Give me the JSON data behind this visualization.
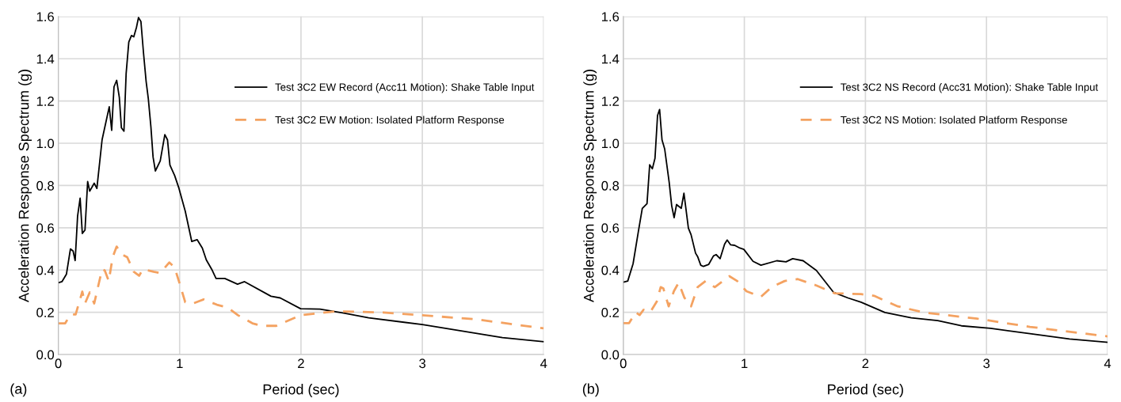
{
  "chart_data": [
    {
      "type": "line",
      "xlabel": "Period (sec)",
      "ylabel": "Acceleration Response Spectrum (g)",
      "annotations": [
        "(a)"
      ],
      "xlim": [
        0,
        4
      ],
      "xticks": [
        0,
        1,
        2,
        3,
        4
      ],
      "ylim": [
        0,
        1.6
      ],
      "yticks": [
        {
          "value": 0,
          "label": "0.0"
        },
        {
          "value": 0.2,
          "label": "0.2"
        },
        {
          "value": 0.4,
          "label": "0.4"
        },
        {
          "value": 0.6,
          "label": "0.6"
        },
        {
          "value": 0.8,
          "label": "0.8"
        },
        {
          "value": 1.0,
          "label": "1.0"
        },
        {
          "value": 1.2,
          "label": "1.2"
        },
        {
          "value": 1.4,
          "label": "1.4"
        },
        {
          "value": 1.6,
          "label": "1.6"
        }
      ],
      "grid": true,
      "legend": "right",
      "marker": "none",
      "series": [
        {
          "name": "Test 3C2 EW Record (Acc11 Motion): Shake Table Input",
          "color": "#000000",
          "line_style": "solid",
          "x": [
            0.0,
            0.03,
            0.067,
            0.1,
            0.122,
            0.139,
            0.159,
            0.18,
            0.198,
            0.22,
            0.242,
            0.259,
            0.296,
            0.318,
            0.361,
            0.394,
            0.42,
            0.44,
            0.459,
            0.481,
            0.503,
            0.52,
            0.541,
            0.559,
            0.581,
            0.603,
            0.622,
            0.644,
            0.661,
            0.681,
            0.702,
            0.724,
            0.742,
            0.763,
            0.781,
            0.8,
            0.84,
            0.878,
            0.9,
            0.92,
            0.959,
            0.992,
            1.046,
            1.1,
            1.144,
            1.187,
            1.22,
            1.264,
            1.3,
            1.372,
            1.477,
            1.535,
            1.753,
            1.829,
            1.997,
            2.156,
            2.352,
            2.558,
            3.0,
            3.66,
            4.0
          ],
          "values": [
            0.34,
            0.345,
            0.38,
            0.5,
            0.49,
            0.445,
            0.655,
            0.74,
            0.573,
            0.589,
            0.819,
            0.773,
            0.811,
            0.786,
            1.017,
            1.104,
            1.173,
            1.061,
            1.267,
            1.298,
            1.217,
            1.073,
            1.057,
            1.329,
            1.479,
            1.51,
            1.504,
            1.548,
            1.595,
            1.576,
            1.429,
            1.292,
            1.21,
            1.079,
            0.935,
            0.869,
            0.916,
            1.041,
            1.016,
            0.897,
            0.847,
            0.791,
            0.679,
            0.535,
            0.544,
            0.504,
            0.448,
            0.404,
            0.36,
            0.36,
            0.333,
            0.345,
            0.276,
            0.268,
            0.217,
            0.215,
            0.196,
            0.174,
            0.142,
            0.08,
            0.061
          ]
        },
        {
          "name": "Test 3C2 EW Motion: Isolated Platform Response",
          "color": "#f4a261",
          "line_style": "dashed",
          "x": [
            0.0,
            0.057,
            0.1,
            0.143,
            0.198,
            0.22,
            0.259,
            0.296,
            0.361,
            0.383,
            0.416,
            0.448,
            0.481,
            0.525,
            0.568,
            0.622,
            0.666,
            0.698,
            0.785,
            0.84,
            0.915,
            0.959,
            1.0,
            1.046,
            1.111,
            1.198,
            1.307,
            1.394,
            1.481,
            1.6,
            1.677,
            1.797,
            1.997,
            2.286,
            2.678,
            3.0,
            3.44,
            4.0
          ],
          "values": [
            0.148,
            0.148,
            0.19,
            0.19,
            0.298,
            0.242,
            0.294,
            0.242,
            0.404,
            0.398,
            0.348,
            0.461,
            0.511,
            0.474,
            0.461,
            0.392,
            0.373,
            0.404,
            0.392,
            0.386,
            0.436,
            0.411,
            0.336,
            0.248,
            0.242,
            0.261,
            0.236,
            0.223,
            0.186,
            0.148,
            0.136,
            0.136,
            0.186,
            0.205,
            0.199,
            0.186,
            0.167,
            0.124
          ]
        }
      ]
    },
    {
      "type": "line",
      "xlabel": "Period (sec)",
      "ylabel": "Acceleration Response Spectrum (g)",
      "annotations": [
        "(b)"
      ],
      "xlim": [
        0,
        4
      ],
      "xticks": [
        0,
        1,
        2,
        3,
        4
      ],
      "ylim": [
        0,
        1.6
      ],
      "yticks": [
        {
          "value": 0,
          "label": "0.0"
        },
        {
          "value": 0.2,
          "label": "0.2"
        },
        {
          "value": 0.4,
          "label": "0.4"
        },
        {
          "value": 0.6,
          "label": "0.6"
        },
        {
          "value": 0.8,
          "label": "0.8"
        },
        {
          "value": 1.0,
          "label": "1.0"
        },
        {
          "value": 1.2,
          "label": "1.2"
        },
        {
          "value": 1.4,
          "label": "1.4"
        },
        {
          "value": 1.6,
          "label": "1.6"
        }
      ],
      "grid": true,
      "legend": "right",
      "marker": "none",
      "series": [
        {
          "name": "Test 3C2 NS Record (Acc31 Motion): Shake Table Input",
          "color": "#000000",
          "line_style": "solid",
          "x": [
            0.0,
            0.037,
            0.081,
            0.124,
            0.157,
            0.196,
            0.218,
            0.24,
            0.262,
            0.283,
            0.3,
            0.32,
            0.342,
            0.379,
            0.4,
            0.42,
            0.44,
            0.479,
            0.501,
            0.538,
            0.56,
            0.597,
            0.614,
            0.64,
            0.662,
            0.706,
            0.745,
            0.767,
            0.8,
            0.837,
            0.858,
            0.887,
            0.92,
            0.963,
            0.996,
            1.072,
            1.137,
            1.268,
            1.344,
            1.399,
            1.486,
            1.595,
            1.736,
            1.856,
            1.964,
            2.161,
            2.379,
            2.597,
            2.793,
            3.033,
            3.359,
            3.686,
            4.0
          ],
          "values": [
            0.342,
            0.348,
            0.43,
            0.58,
            0.692,
            0.714,
            0.898,
            0.879,
            0.929,
            1.131,
            1.16,
            1.016,
            0.973,
            0.816,
            0.704,
            0.648,
            0.71,
            0.692,
            0.764,
            0.598,
            0.567,
            0.48,
            0.464,
            0.423,
            0.417,
            0.427,
            0.467,
            0.473,
            0.454,
            0.523,
            0.542,
            0.519,
            0.517,
            0.504,
            0.498,
            0.441,
            0.423,
            0.444,
            0.439,
            0.454,
            0.444,
            0.398,
            0.295,
            0.268,
            0.248,
            0.199,
            0.174,
            0.161,
            0.136,
            0.124,
            0.099,
            0.074,
            0.058
          ]
        },
        {
          "name": "Test 3C2 NS Motion: Isolated Platform Response",
          "color": "#f4a261",
          "line_style": "dashed",
          "x": [
            0.0,
            0.048,
            0.102,
            0.135,
            0.167,
            0.222,
            0.276,
            0.309,
            0.331,
            0.375,
            0.418,
            0.457,
            0.505,
            0.56,
            0.614,
            0.68,
            0.756,
            0.81,
            0.876,
            0.941,
            1.017,
            1.137,
            1.224,
            1.333,
            1.442,
            1.595,
            1.747,
            1.964,
            2.072,
            2.268,
            2.486,
            2.922,
            3.359,
            4.0
          ],
          "values": [
            0.149,
            0.149,
            0.2,
            0.187,
            0.212,
            0.2,
            0.25,
            0.319,
            0.313,
            0.228,
            0.3,
            0.34,
            0.269,
            0.228,
            0.319,
            0.348,
            0.319,
            0.342,
            0.371,
            0.348,
            0.3,
            0.273,
            0.319,
            0.348,
            0.357,
            0.327,
            0.29,
            0.286,
            0.278,
            0.228,
            0.199,
            0.17,
            0.131,
            0.086
          ]
        }
      ]
    }
  ]
}
